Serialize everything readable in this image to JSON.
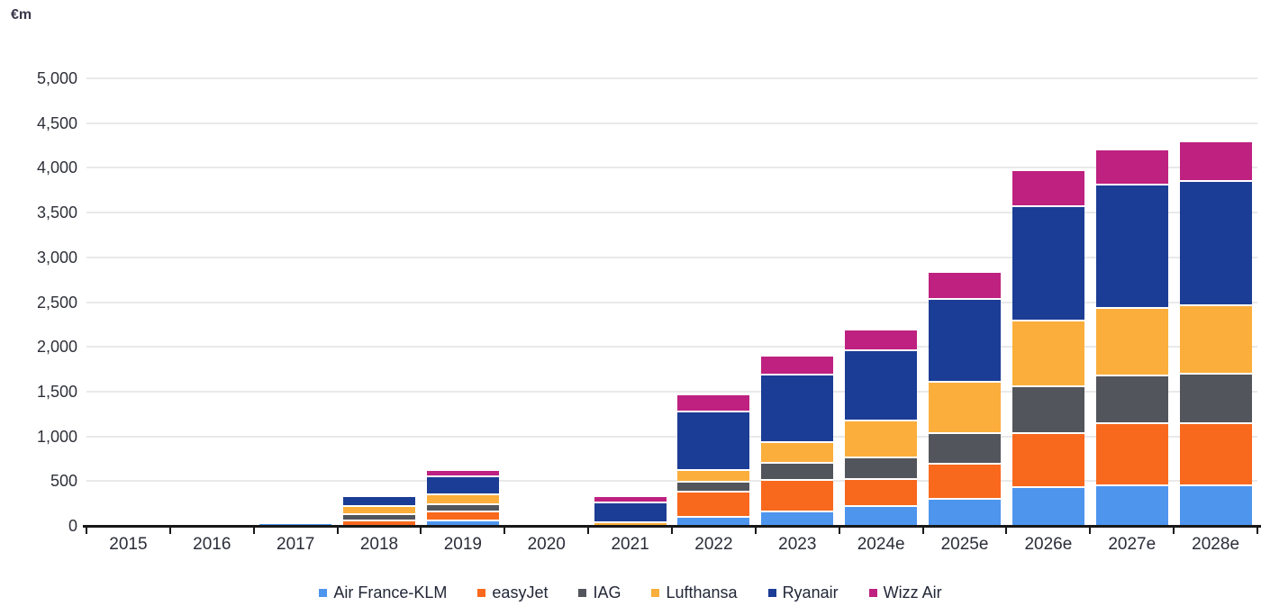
{
  "chart_data": {
    "type": "bar",
    "stacked": true,
    "unit_label": "€m",
    "categories": [
      "2015",
      "2016",
      "2017",
      "2018",
      "2019",
      "2020",
      "2021",
      "2022",
      "2023",
      "2024e",
      "2025e",
      "2026e",
      "2027e",
      "2028e"
    ],
    "series": [
      {
        "name": "Air France-KLM",
        "color": "#4E95EE",
        "values": [
          15,
          0,
          20,
          0,
          75,
          0,
          0,
          110,
          175,
          235,
          315,
          440,
          465,
          465
        ]
      },
      {
        "name": "easyJet",
        "color": "#F8691D",
        "values": [
          0,
          0,
          0,
          70,
          100,
          0,
          0,
          285,
          345,
          300,
          390,
          610,
          695,
          690
        ]
      },
      {
        "name": "IAG",
        "color": "#53555C",
        "values": [
          0,
          0,
          0,
          70,
          75,
          0,
          0,
          110,
          190,
          245,
          345,
          515,
          530,
          555
        ]
      },
      {
        "name": "Lufthansa",
        "color": "#FBAE3C",
        "values": [
          0,
          0,
          0,
          90,
          115,
          0,
          55,
          125,
          240,
          405,
          570,
          740,
          750,
          765
        ]
      },
      {
        "name": "Ryanair",
        "color": "#1C3D95",
        "values": [
          0,
          0,
          0,
          115,
          200,
          0,
          220,
          660,
          750,
          790,
          925,
          1280,
          1385,
          1390
        ]
      },
      {
        "name": "Wizz Air",
        "color": "#BE2180",
        "values": [
          0,
          0,
          0,
          0,
          65,
          0,
          70,
          185,
          215,
          230,
          300,
          395,
          395,
          440
        ]
      }
    ],
    "ylim": [
      0,
      5000
    ],
    "ytick_step": 500,
    "ytick_labels": [
      "0",
      "500",
      "1,000",
      "1,500",
      "2,000",
      "2,500",
      "3,000",
      "3,500",
      "4,000",
      "4,500",
      "5,000"
    ],
    "grid": "horizontal",
    "legend_position": "bottom"
  },
  "colors": {
    "grid": "#e9e9e9",
    "axis": "#181818",
    "text": "#2b2d38",
    "background": "#ffffff"
  }
}
